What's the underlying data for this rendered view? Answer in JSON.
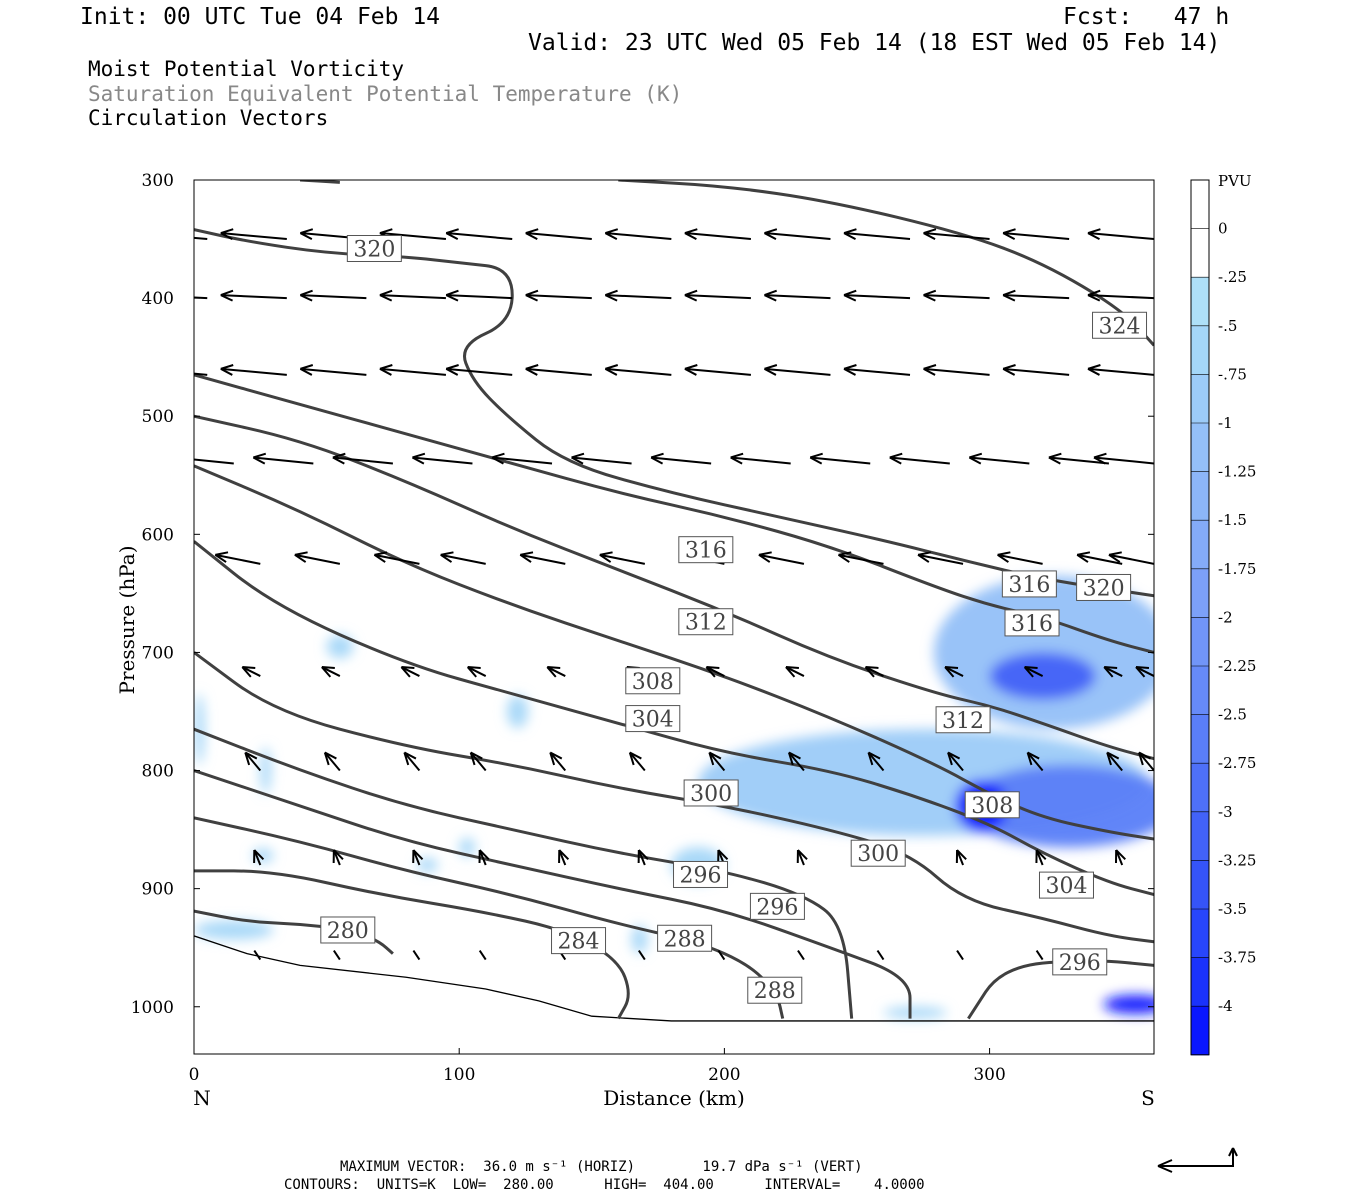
{
  "header": {
    "init": "Init: 00 UTC Tue 04 Feb 14",
    "fcst": "Fcst:   47 h",
    "valid": "Valid: 23 UTC Wed 05 Feb 14 (18 EST Wed 05 Feb 14)"
  },
  "titles": {
    "line1": "Moist Potential Vorticity",
    "line2": "Saturation Equivalent Potential Temperature (K)",
    "line3": "Circulation Vectors"
  },
  "footer": {
    "vector_line": "MAXIMUM VECTOR:  36.0 m s⁻¹ (HORIZ)        19.7 dPa s⁻¹ (VERT)",
    "contour_line": "CONTOURS:  UNITS=K  LOW=  280.00      HIGH=  404.00      INTERVAL=    4.0000"
  },
  "colors": {
    "contour": "#404040",
    "vector": "#000000",
    "pv_light": "#aee0f8",
    "pv_dark": "#0000ff"
  },
  "chart_data": {
    "type": "contour",
    "xlabel": "Distance (km)",
    "ylabel": "Pressure (hPa)",
    "xlim": [
      0,
      362
    ],
    "ylim": [
      1040,
      300
    ],
    "x_ticks": [
      0,
      100,
      200,
      300
    ],
    "y_ticks": [
      300,
      400,
      500,
      600,
      700,
      800,
      900,
      1000
    ],
    "x_end_labels": {
      "left": "N",
      "right": "S"
    },
    "colorbar": {
      "title": "PVU",
      "labels": [
        "0",
        "-.25",
        "-.5",
        "-.75",
        "-1",
        "-1.25",
        "-1.5",
        "-1.75",
        "-2",
        "-2.25",
        "-2.5",
        "-2.75",
        "-3",
        "-3.25",
        "-3.5",
        "-3.75",
        "-4"
      ],
      "colors": [
        "#ffffff",
        "#ffffff",
        "#aee0f8",
        "#a4d6f8",
        "#9ccbf8",
        "#94c0f8",
        "#8cb6f8",
        "#84abf8",
        "#7ca0f8",
        "#7195f8",
        "#668af8",
        "#5a7ef8",
        "#4e70f8",
        "#4262f8",
        "#3554f8",
        "#2846fb",
        "#1a32fc",
        "#0a16fe"
      ]
    },
    "contours": [
      {
        "level": 320,
        "label": "320",
        "pts": [
          [
            0,
            342
          ],
          [
            20,
            352
          ],
          [
            50,
            362
          ],
          [
            80,
            365
          ],
          [
            100,
            370
          ],
          [
            120,
            375
          ],
          [
            120,
            420
          ],
          [
            100,
            440
          ],
          [
            105,
            470
          ],
          [
            118,
            500
          ],
          [
            140,
            540
          ],
          [
            180,
            565
          ],
          [
            220,
            585
          ],
          [
            260,
            605
          ],
          [
            290,
            622
          ],
          [
            320,
            638
          ],
          [
            362,
            652
          ]
        ],
        "labels": [
          [
            68,
            358
          ],
          [
            343,
            645
          ]
        ]
      },
      {
        "level": 324,
        "label": "324",
        "pts": [
          [
            160,
            300
          ],
          [
            200,
            305
          ],
          [
            240,
            318
          ],
          [
            290,
            345
          ],
          [
            320,
            370
          ],
          [
            350,
            410
          ],
          [
            362,
            440
          ]
        ],
        "labels": [
          [
            349,
            423
          ]
        ]
      },
      {
        "level": 320,
        "label": "320",
        "pts": [
          [
            40,
            300
          ],
          [
            55,
            302
          ]
        ],
        "labels": []
      },
      {
        "level": 316,
        "label": "316",
        "pts": [
          [
            0,
            465
          ],
          [
            40,
            490
          ],
          [
            80,
            515
          ],
          [
            120,
            540
          ],
          [
            160,
            565
          ],
          [
            200,
            585
          ],
          [
            240,
            610
          ],
          [
            280,
            645
          ],
          [
            300,
            660
          ],
          [
            320,
            670
          ],
          [
            345,
            690
          ],
          [
            362,
            700
          ]
        ],
        "labels": [
          [
            193,
            613
          ],
          [
            316,
            675
          ],
          [
            315,
            642
          ]
        ]
      },
      {
        "level": 312,
        "label": "312",
        "pts": [
          [
            0,
            500
          ],
          [
            40,
            520
          ],
          [
            80,
            555
          ],
          [
            120,
            595
          ],
          [
            160,
            630
          ],
          [
            200,
            665
          ],
          [
            240,
            705
          ],
          [
            280,
            735
          ],
          [
            300,
            745
          ],
          [
            320,
            760
          ],
          [
            345,
            780
          ],
          [
            362,
            790
          ]
        ],
        "labels": [
          [
            193,
            674
          ],
          [
            290,
            757
          ]
        ]
      },
      {
        "level": 308,
        "label": "308",
        "pts": [
          [
            0,
            542
          ],
          [
            40,
            580
          ],
          [
            80,
            625
          ],
          [
            120,
            660
          ],
          [
            160,
            690
          ],
          [
            200,
            720
          ],
          [
            240,
            755
          ],
          [
            280,
            795
          ],
          [
            300,
            820
          ],
          [
            320,
            840
          ],
          [
            345,
            852
          ],
          [
            362,
            858
          ]
        ],
        "labels": [
          [
            173,
            724
          ],
          [
            301,
            829
          ]
        ]
      },
      {
        "level": 304,
        "label": "304",
        "pts": [
          [
            0,
            606
          ],
          [
            30,
            660
          ],
          [
            80,
            710
          ],
          [
            120,
            735
          ],
          [
            160,
            760
          ],
          [
            200,
            785
          ],
          [
            240,
            800
          ],
          [
            270,
            820
          ],
          [
            300,
            845
          ],
          [
            320,
            870
          ],
          [
            345,
            895
          ],
          [
            362,
            905
          ]
        ],
        "labels": [
          [
            173,
            756
          ],
          [
            329,
            897
          ]
        ]
      },
      {
        "level": 300,
        "label": "300",
        "pts": [
          [
            0,
            700
          ],
          [
            30,
            750
          ],
          [
            80,
            780
          ],
          [
            120,
            795
          ],
          [
            160,
            815
          ],
          [
            200,
            830
          ],
          [
            240,
            850
          ],
          [
            270,
            870
          ],
          [
            290,
            910
          ],
          [
            320,
            925
          ],
          [
            345,
            940
          ],
          [
            362,
            945
          ]
        ],
        "labels": [
          [
            195,
            819
          ],
          [
            258,
            870
          ]
        ]
      },
      {
        "level": 296,
        "label": "296",
        "pts": [
          [
            0,
            765
          ],
          [
            40,
            800
          ],
          [
            80,
            830
          ],
          [
            120,
            850
          ],
          [
            160,
            870
          ],
          [
            200,
            885
          ],
          [
            230,
            905
          ],
          [
            245,
            930
          ],
          [
            248,
            1010
          ]
        ],
        "labels": [
          [
            191,
            888
          ],
          [
            220,
            915
          ]
        ]
      },
      {
        "level": 296,
        "label": "296",
        "pts": [
          [
            292,
            1010
          ],
          [
            305,
            965
          ],
          [
            340,
            960
          ],
          [
            362,
            965
          ]
        ],
        "labels": [
          [
            334,
            962
          ]
        ]
      },
      {
        "level": 292,
        "label": "",
        "pts": [
          [
            0,
            800
          ],
          [
            40,
            830
          ],
          [
            80,
            860
          ],
          [
            120,
            880
          ],
          [
            160,
            900
          ],
          [
            200,
            918
          ],
          [
            240,
            950
          ],
          [
            270,
            975
          ],
          [
            270,
            1010
          ]
        ],
        "labels": []
      },
      {
        "level": 288,
        "label": "288",
        "pts": [
          [
            0,
            840
          ],
          [
            40,
            860
          ],
          [
            80,
            885
          ],
          [
            120,
            905
          ],
          [
            160,
            930
          ],
          [
            190,
            945
          ],
          [
            210,
            965
          ],
          [
            220,
            990
          ],
          [
            222,
            1010
          ]
        ],
        "labels": [
          [
            185,
            942
          ],
          [
            219,
            986
          ]
        ]
      },
      {
        "level": 284,
        "label": "284",
        "pts": [
          [
            0,
            885
          ],
          [
            30,
            885
          ],
          [
            70,
            905
          ],
          [
            110,
            920
          ],
          [
            140,
            935
          ],
          [
            160,
            960
          ],
          [
            165,
            990
          ],
          [
            160,
            1010
          ]
        ],
        "labels": [
          [
            145,
            944
          ]
        ]
      },
      {
        "level": 280,
        "label": "280",
        "pts": [
          [
            0,
            919
          ],
          [
            20,
            928
          ],
          [
            40,
            930
          ],
          [
            60,
            935
          ],
          [
            70,
            945
          ],
          [
            75,
            955
          ]
        ],
        "labels": [
          [
            58,
            935
          ]
        ]
      }
    ],
    "pv_shading": [
      {
        "value": -1.0,
        "cx": 324,
        "cy": 700,
        "rx": 45,
        "ry": 65
      },
      {
        "value": -3.0,
        "cx": 320,
        "cy": 720,
        "rx": 20,
        "ry": 20
      },
      {
        "value": -0.75,
        "cx": 275,
        "cy": 810,
        "rx": 85,
        "ry": 45
      },
      {
        "value": -2.5,
        "cx": 330,
        "cy": 830,
        "rx": 40,
        "ry": 35
      },
      {
        "value": -4.0,
        "cx": 297,
        "cy": 830,
        "rx": 10,
        "ry": 22
      },
      {
        "value": -4.0,
        "cx": 355,
        "cy": 998,
        "rx": 12,
        "ry": 8
      },
      {
        "value": -0.5,
        "cx": 55,
        "cy": 695,
        "rx": 5,
        "ry": 10
      },
      {
        "value": -0.5,
        "cx": 122,
        "cy": 750,
        "rx": 4,
        "ry": 14
      },
      {
        "value": -0.5,
        "cx": 2,
        "cy": 765,
        "rx": 2,
        "ry": 30
      },
      {
        "value": -0.5,
        "cx": 27,
        "cy": 800,
        "rx": 2,
        "ry": 20
      },
      {
        "value": -0.5,
        "cx": 190,
        "cy": 880,
        "rx": 10,
        "ry": 15
      },
      {
        "value": -0.5,
        "cx": 168,
        "cy": 943,
        "rx": 3,
        "ry": 12
      },
      {
        "value": -0.5,
        "cx": 15,
        "cy": 935,
        "rx": 15,
        "ry": 8
      },
      {
        "value": -0.5,
        "cx": 26,
        "cy": 872,
        "rx": 4,
        "ry": 6
      },
      {
        "value": -0.5,
        "cx": 88,
        "cy": 880,
        "rx": 4,
        "ry": 6
      },
      {
        "value": -0.5,
        "cx": 103,
        "cy": 865,
        "rx": 3,
        "ry": 8
      },
      {
        "value": -0.5,
        "cx": 272,
        "cy": 1005,
        "rx": 12,
        "ry": 5
      }
    ],
    "terrain": {
      "pts": [
        [
          0,
          940
        ],
        [
          20,
          955
        ],
        [
          40,
          965
        ],
        [
          80,
          975
        ],
        [
          110,
          985
        ],
        [
          130,
          995
        ],
        [
          150,
          1008
        ],
        [
          180,
          1012
        ],
        [
          362,
          1012
        ]
      ]
    },
    "vectors": [
      {
        "p": 350,
        "x": [
          5,
          35,
          65,
          95,
          120,
          150,
          180,
          210,
          240,
          270,
          300,
          330,
          362
        ],
        "dx": -22,
        "dy": -2
      },
      {
        "p": 400,
        "x": [
          5,
          35,
          65,
          95,
          120,
          150,
          180,
          210,
          240,
          270,
          300,
          330,
          362
        ],
        "dx": -22,
        "dy": -1
      },
      {
        "p": 465,
        "x": [
          5,
          35,
          65,
          95,
          120,
          150,
          180,
          210,
          240,
          270,
          300,
          330,
          362
        ],
        "dx": -22,
        "dy": -2
      },
      {
        "p": 540,
        "x": [
          15,
          45,
          75,
          105,
          135,
          165,
          195,
          225,
          255,
          285,
          315,
          345,
          362
        ],
        "dx": -20,
        "dy": -2
      },
      {
        "p": 625,
        "x": [
          25,
          55,
          85,
          110,
          140,
          170,
          200,
          230,
          260,
          290,
          320,
          350,
          362
        ],
        "dx": -15,
        "dy": -3
      },
      {
        "p": 720,
        "x": [
          25,
          55,
          85,
          110,
          140,
          170,
          200,
          230,
          260,
          290,
          320,
          350,
          362
        ],
        "dx": -6,
        "dy": -3
      },
      {
        "p": 800,
        "x": [
          25,
          55,
          85,
          110,
          140,
          170,
          200,
          230,
          260,
          290,
          320,
          350,
          362
        ],
        "dx": -5,
        "dy": -6
      },
      {
        "p": 880,
        "x": [
          25,
          55,
          85,
          110,
          140,
          170,
          200,
          230,
          260,
          290,
          320,
          350
        ],
        "dx": -2,
        "dy": -5
      },
      {
        "p": 960,
        "x": [
          25,
          55,
          85,
          110,
          140,
          170,
          200,
          230,
          260,
          290,
          320
        ],
        "dx": -2,
        "dy": -3
      }
    ],
    "reference_vector": {
      "label_h": "36.0 m s⁻¹",
      "label_v": "19.7 dPa s⁻¹"
    }
  }
}
